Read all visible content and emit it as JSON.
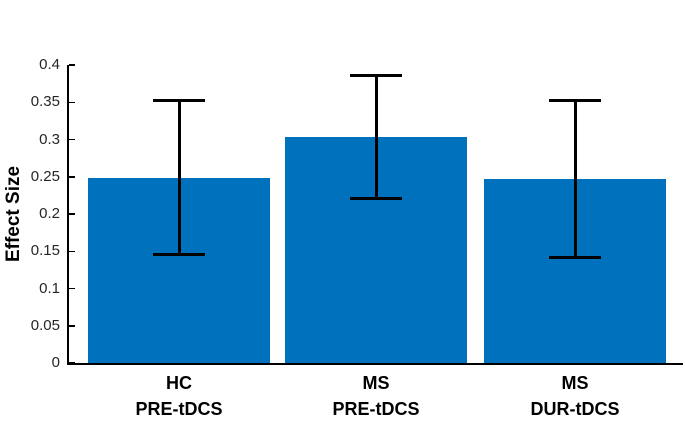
{
  "chart": {
    "background_color": "#ffffff"
  },
  "chart_data": {
    "type": "bar",
    "title": "",
    "xlabel": "",
    "ylabel": "Effect Size",
    "ylim": [
      0,
      0.4
    ],
    "ytick_values": [
      0,
      0.05,
      0.1,
      0.15,
      0.2,
      0.25,
      0.3,
      0.35,
      0.4
    ],
    "ytick_labels": [
      "0",
      "0.05",
      "0.1",
      "0.15",
      "0.2",
      "0.25",
      "0.3",
      "0.35",
      "0.4"
    ],
    "grid": false,
    "legend": "none",
    "categories": [
      "HC\nPRE-tDCS",
      "MS\nPRE-tDCS",
      "MS\nDUR-tDCS"
    ],
    "series": [
      {
        "name": "Effect Size",
        "values": [
          0.249,
          0.303,
          0.247
        ],
        "error_low": [
          0.145,
          0.221,
          0.142
        ],
        "error_high": [
          0.353,
          0.386,
          0.352
        ]
      }
    ],
    "bar_color": "#0072BD",
    "error_bar_color": "#000000",
    "axis_color": "#000000",
    "ytick_label_color": "#262626",
    "category_label_color": "#000000"
  }
}
